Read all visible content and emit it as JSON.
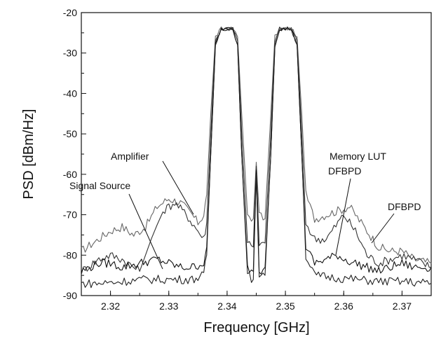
{
  "chart_data": {
    "type": "line",
    "xlabel": "Frequency [GHz]",
    "ylabel": "PSD [dBm/Hz]",
    "xlim": [
      2.315,
      2.375
    ],
    "ylim": [
      -90,
      -20
    ],
    "x_ticks": [
      2.32,
      2.33,
      2.34,
      2.35,
      2.36,
      2.37
    ],
    "x_tick_labels": [
      "2.32",
      "2.33",
      "2.34",
      "2.35",
      "2.36",
      "2.37"
    ],
    "y_ticks": [
      -90,
      -80,
      -70,
      -60,
      -50,
      -40,
      -30,
      -20
    ],
    "y_tick_labels": [
      "-90",
      "-80",
      "-70",
      "-60",
      "-50",
      "-40",
      "-30",
      "-20"
    ],
    "grid": false,
    "legend": "none",
    "annotations": [
      {
        "text": "Amplifier"
      },
      {
        "text": "Signal Source"
      },
      {
        "text": "Memory LUT"
      },
      {
        "text": "DFBPD"
      },
      {
        "text": "DFBPD"
      }
    ],
    "series": [
      {
        "color": "#666666",
        "x": [
          2.315,
          2.318,
          2.32,
          2.322,
          2.324,
          2.326,
          2.328,
          2.33,
          2.332,
          2.334,
          2.335,
          2.336,
          2.3365,
          2.3372,
          2.338,
          2.339,
          2.341,
          2.3418,
          2.3425,
          2.3435,
          2.3445,
          2.345,
          2.3455,
          2.3465,
          2.3475,
          2.3482,
          2.349,
          2.351,
          2.352,
          2.3528,
          2.3535,
          2.355,
          2.357,
          2.359,
          2.361,
          2.362,
          2.364,
          2.366,
          2.368,
          2.37,
          2.372,
          2.375
        ],
        "y": [
          -79,
          -76,
          -74,
          -73,
          -75,
          -73,
          -68,
          -66,
          -67,
          -70,
          -72,
          -70,
          -65,
          -45,
          -26,
          -24,
          -24,
          -26,
          -45,
          -70,
          -71,
          -57,
          -70,
          -71,
          -45,
          -26,
          -24,
          -24,
          -26,
          -45,
          -65,
          -71,
          -70,
          -69,
          -68,
          -70,
          -74,
          -78,
          -79,
          -79,
          -81,
          -82
        ]
      },
      {
        "color": "#333333",
        "x": [
          2.315,
          2.318,
          2.32,
          2.322,
          2.325,
          2.327,
          2.329,
          2.331,
          2.333,
          2.335,
          2.336,
          2.3365,
          2.3372,
          2.338,
          2.339,
          2.341,
          2.3418,
          2.3425,
          2.3435,
          2.3445,
          2.345,
          2.3455,
          2.3465,
          2.3475,
          2.3482,
          2.349,
          2.351,
          2.352,
          2.3528,
          2.3535,
          2.355,
          2.357,
          2.359,
          2.36,
          2.362,
          2.364,
          2.366,
          2.368,
          2.37,
          2.372,
          2.375
        ],
        "y": [
          -84,
          -81,
          -80,
          -81,
          -84,
          -76,
          -69,
          -67,
          -70,
          -74,
          -76,
          -72,
          -50,
          -27,
          -24,
          -24,
          -27,
          -50,
          -77,
          -78,
          -58,
          -78,
          -77,
          -50,
          -27,
          -24,
          -24,
          -27,
          -50,
          -72,
          -76,
          -76,
          -72,
          -70,
          -74,
          -80,
          -82,
          -81,
          -80,
          -81,
          -83
        ]
      },
      {
        "color": "#111111",
        "x": [
          2.315,
          2.318,
          2.32,
          2.322,
          2.325,
          2.328,
          2.33,
          2.332,
          2.334,
          2.336,
          2.3365,
          2.3372,
          2.338,
          2.339,
          2.341,
          2.3418,
          2.3425,
          2.3435,
          2.3445,
          2.345,
          2.3455,
          2.3465,
          2.3475,
          2.3482,
          2.349,
          2.351,
          2.352,
          2.3528,
          2.3535,
          2.355,
          2.357,
          2.359,
          2.36,
          2.362,
          2.364,
          2.366,
          2.368,
          2.37,
          2.372,
          2.375
        ],
        "y": [
          -84,
          -82,
          -82,
          -83,
          -82,
          -81,
          -82,
          -83,
          -83,
          -82,
          -78,
          -55,
          -28,
          -24,
          -24,
          -28,
          -55,
          -83,
          -84,
          -59,
          -84,
          -83,
          -55,
          -28,
          -24,
          -24,
          -28,
          -55,
          -78,
          -82,
          -81,
          -80,
          -81,
          -82,
          -83,
          -84,
          -83,
          -82,
          -83,
          -83
        ]
      },
      {
        "color": "#222222",
        "x": [
          2.315,
          2.318,
          2.322,
          2.326,
          2.33,
          2.334,
          2.336,
          2.3365,
          2.3372,
          2.338,
          2.339,
          2.341,
          2.3418,
          2.3425,
          2.3435,
          2.3445,
          2.345,
          2.3455,
          2.3465,
          2.3475,
          2.3482,
          2.349,
          2.351,
          2.352,
          2.3528,
          2.3535,
          2.355,
          2.358,
          2.362,
          2.366,
          2.37,
          2.375
        ],
        "y": [
          -87,
          -87,
          -86.5,
          -86,
          -86,
          -86,
          -85,
          -80,
          -55,
          -28,
          -24,
          -24,
          -28,
          -55,
          -85,
          -86,
          -60,
          -86,
          -85,
          -55,
          -28,
          -24,
          -24,
          -28,
          -55,
          -80,
          -85,
          -85.5,
          -86,
          -86.5,
          -86.5,
          -87
        ]
      }
    ]
  }
}
